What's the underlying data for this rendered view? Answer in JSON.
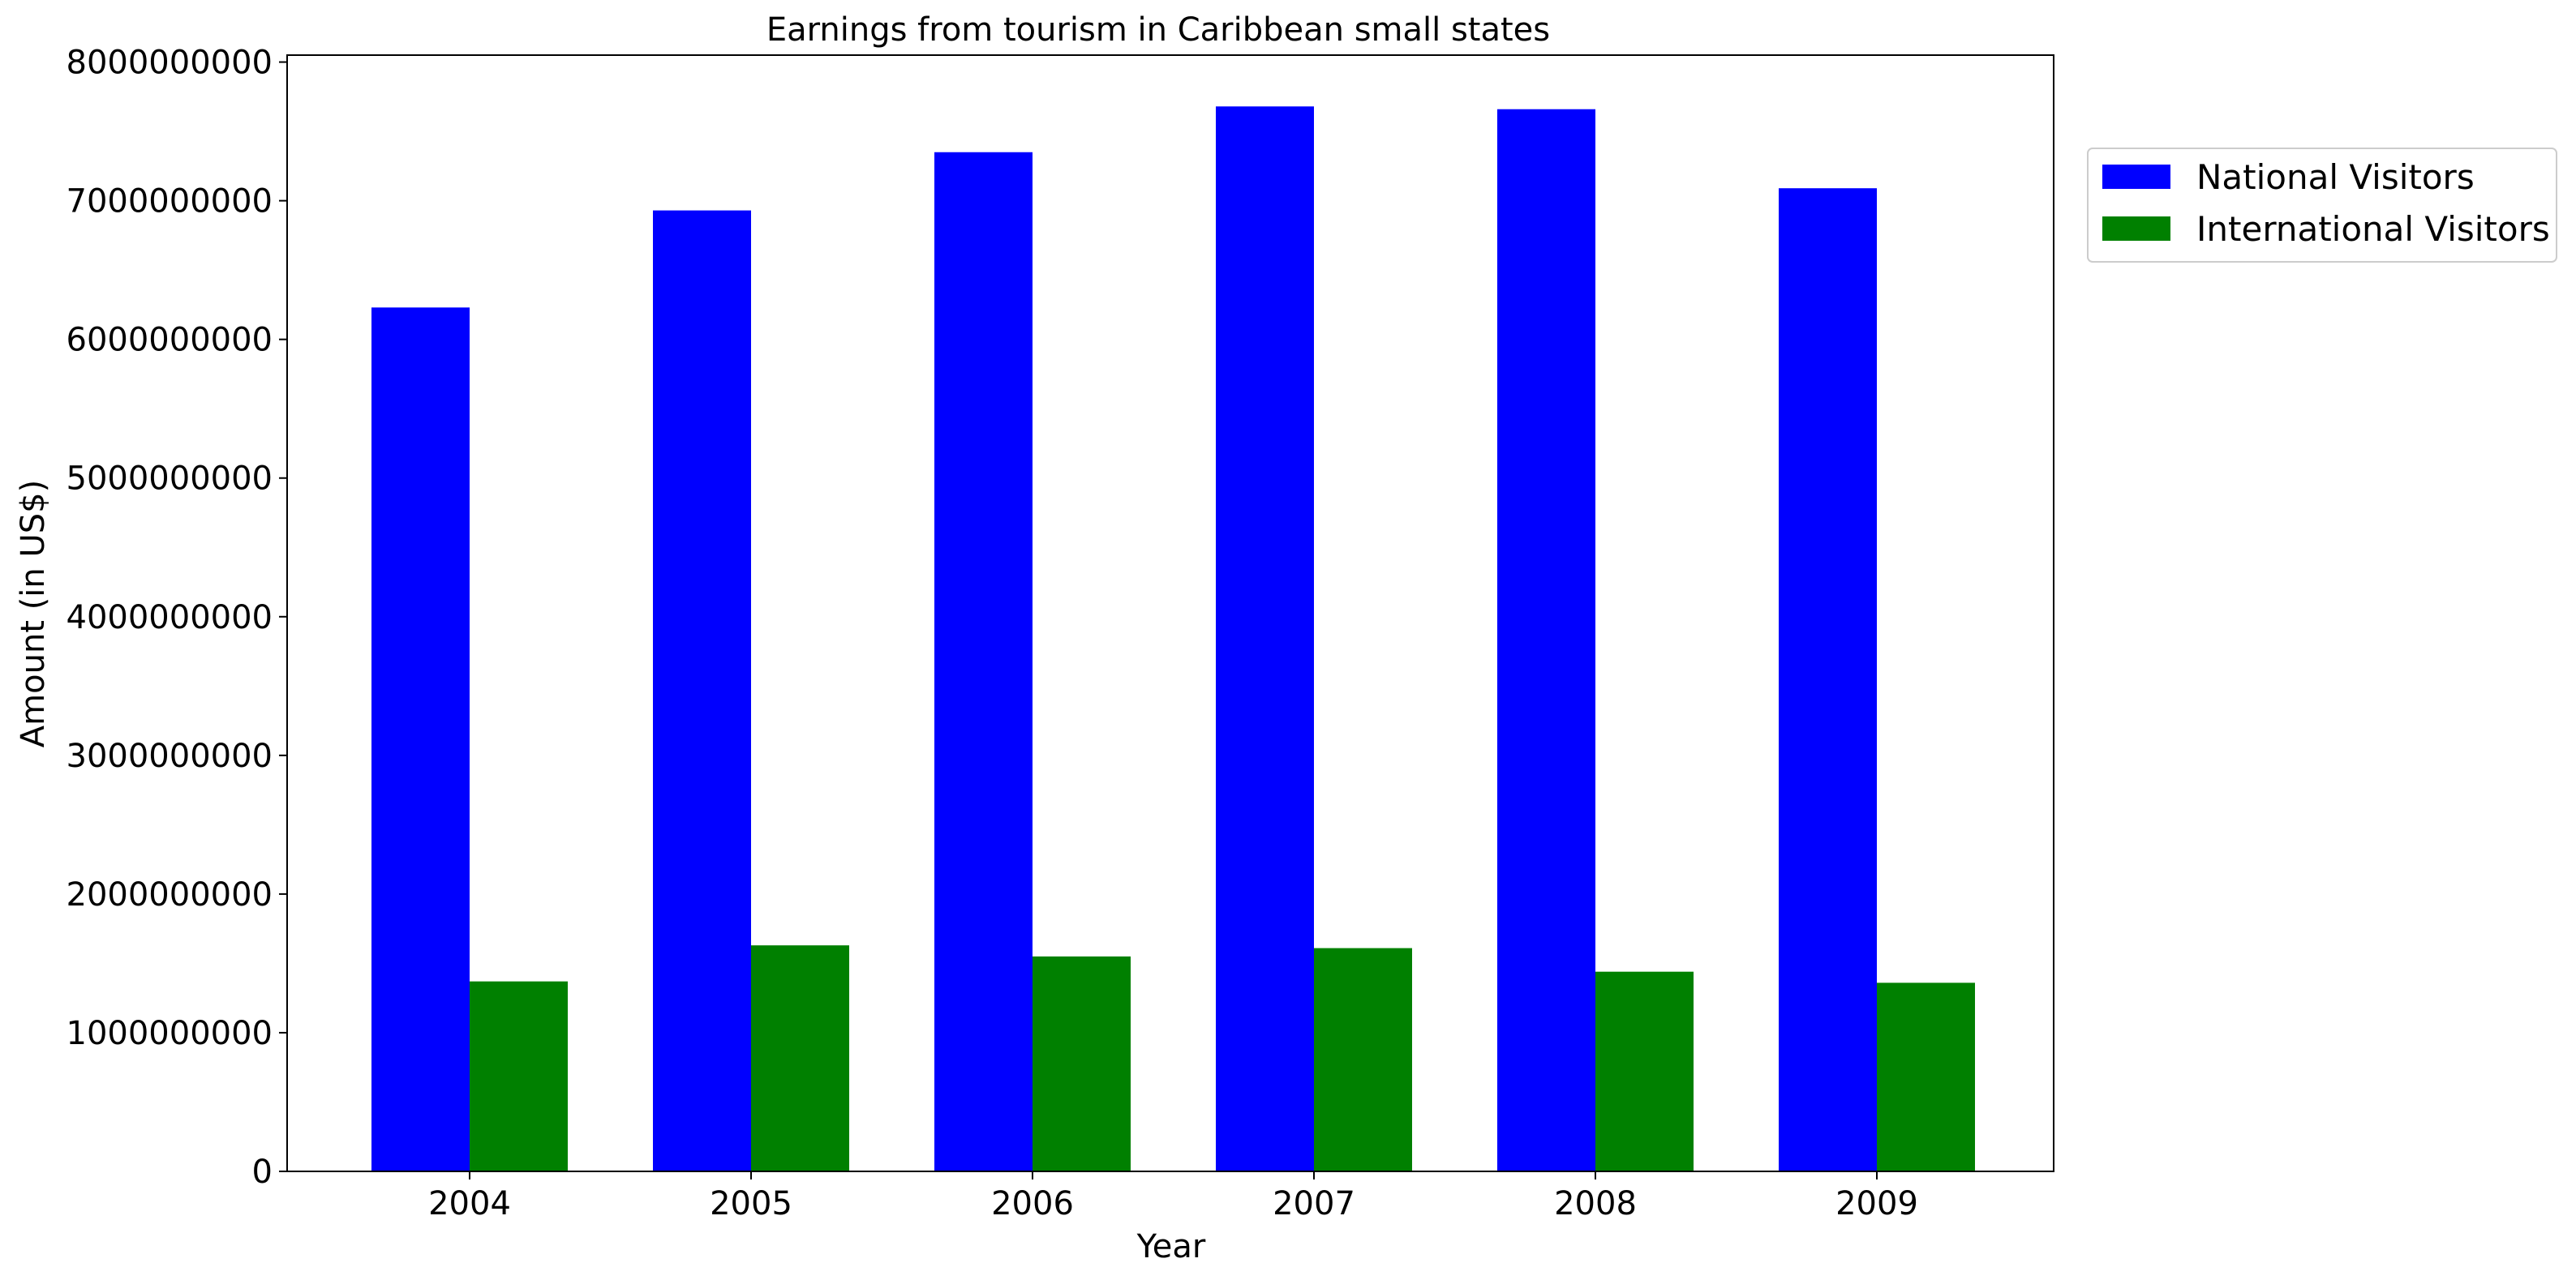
{
  "chart_data": {
    "type": "bar",
    "title": "Earnings from tourism in Caribbean small states",
    "xlabel": "Year",
    "ylabel": "Amount (in US$)",
    "categories": [
      "2004",
      "2005",
      "2006",
      "2007",
      "2008",
      "2009"
    ],
    "ylim": [
      0,
      8050000000
    ],
    "yticks": [
      0,
      1000000000,
      2000000000,
      3000000000,
      4000000000,
      5000000000,
      6000000000,
      7000000000,
      8000000000
    ],
    "ytick_labels": [
      "0",
      "1000000000",
      "2000000000",
      "3000000000",
      "4000000000",
      "5000000000",
      "6000000000",
      "7000000000",
      "8000000000"
    ],
    "grid": false,
    "legend_position": "upper-right-outside",
    "series": [
      {
        "name": "National Visitors",
        "color": "#0000ff",
        "values": [
          6230000000,
          6930000000,
          7350000000,
          7680000000,
          7660000000,
          7090000000
        ]
      },
      {
        "name": "International Visitors",
        "color": "#008000",
        "values": [
          1370000000,
          1630000000,
          1550000000,
          1610000000,
          1440000000,
          1360000000
        ]
      }
    ]
  }
}
